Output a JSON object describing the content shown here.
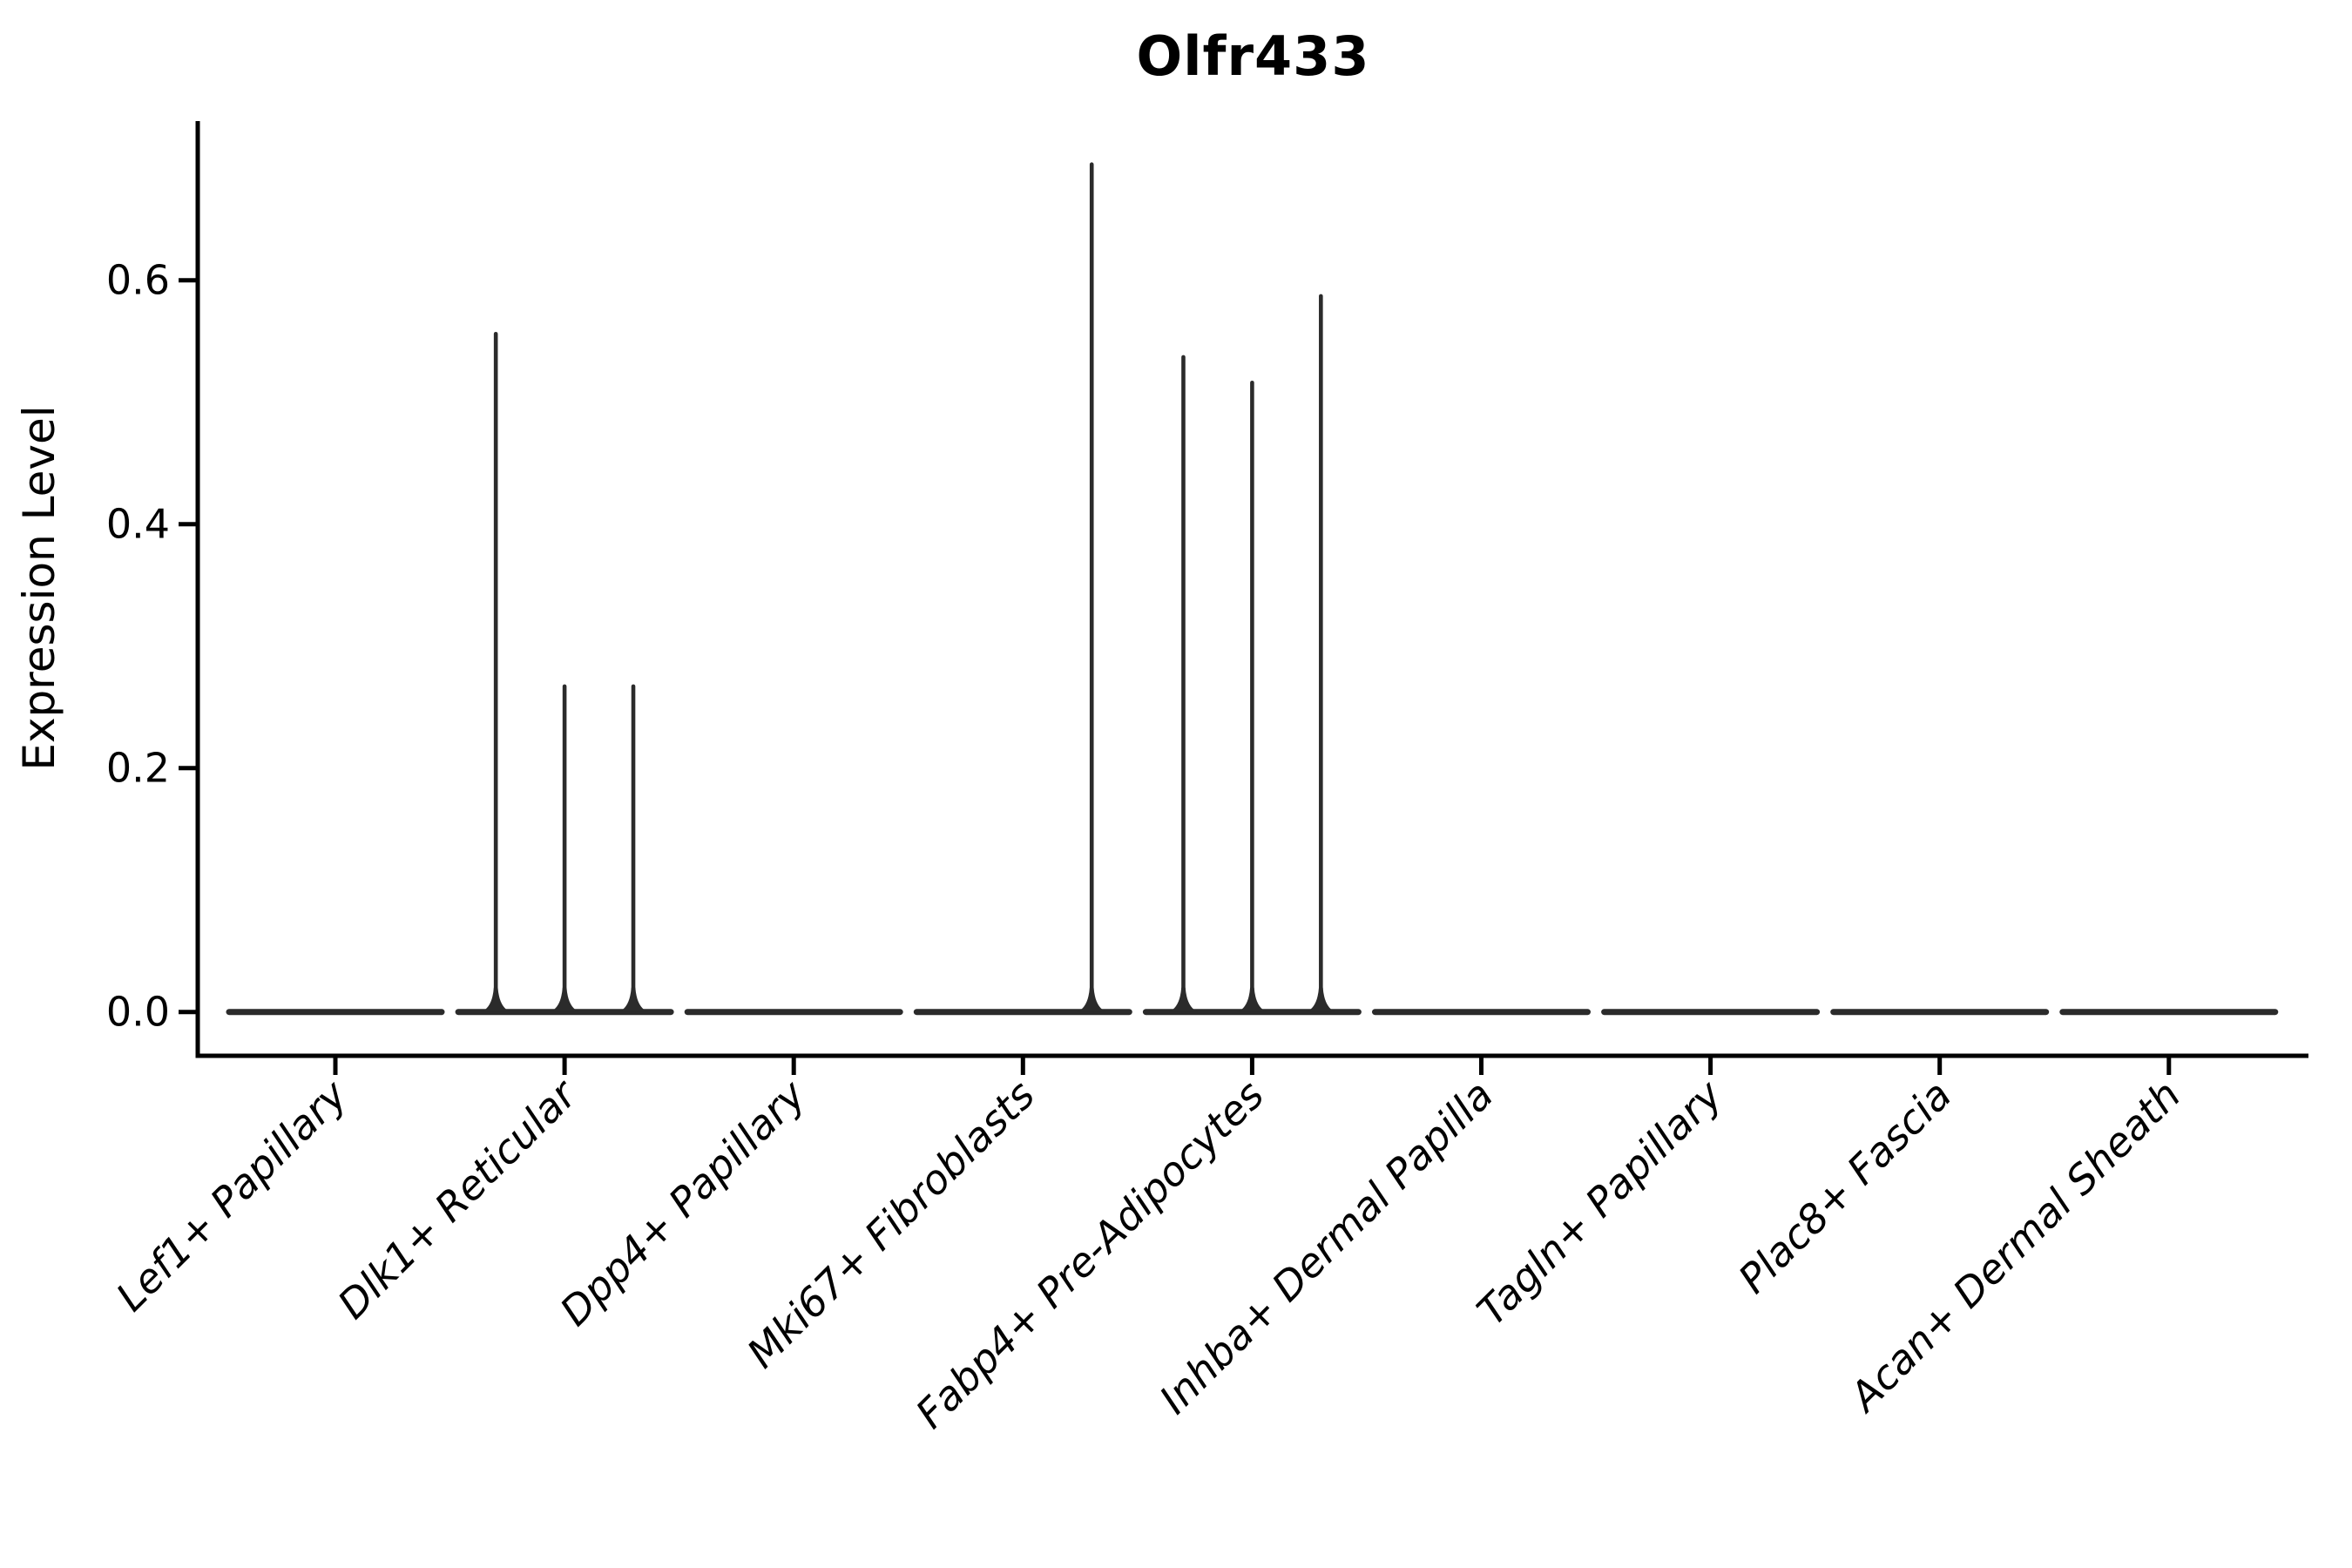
{
  "chart_data": {
    "type": "violin",
    "title": "Olfr433",
    "xlabel": "",
    "ylabel": "Expression Level",
    "yticks": [
      "0.0",
      "0.2",
      "0.4",
      "0.6"
    ],
    "ytick_values": [
      0.0,
      0.2,
      0.4,
      0.6
    ],
    "ylim": [
      -0.036,
      0.731
    ],
    "grid": "off",
    "legend": "none",
    "violin_color": "#2b2b2b",
    "axis_color": "#000000",
    "categories": [
      "Lef1+ Papillary",
      "Dlk1+ Reticular",
      "Dpp4+ Papillary",
      "Mki67+ Fibroblasts",
      "Fabp4+ Pre-Adipocytes",
      "Inhba+ Dermal Papilla",
      "Tagln+ Papillary",
      "Plac8+ Fascia",
      "Acan+ Dermal Sheath"
    ],
    "violins": [
      {
        "category": "Lef1+ Papillary",
        "baseline_value": 0.0,
        "spikes": []
      },
      {
        "category": "Dlk1+ Reticular",
        "baseline_value": 0.0,
        "spikes": [
          {
            "offset": -0.3,
            "value": 0.556
          },
          {
            "offset": 0.0,
            "value": 0.267
          },
          {
            "offset": 0.3,
            "value": 0.267
          }
        ]
      },
      {
        "category": "Dpp4+ Papillary",
        "baseline_value": 0.0,
        "spikes": []
      },
      {
        "category": "Mki67+ Fibroblasts",
        "baseline_value": 0.0,
        "spikes": [
          {
            "offset": 0.3,
            "value": 0.695
          }
        ]
      },
      {
        "category": "Fabp4+ Pre-Adipocytes",
        "baseline_value": 0.0,
        "spikes": [
          {
            "offset": -0.3,
            "value": 0.537
          },
          {
            "offset": 0.0,
            "value": 0.516
          },
          {
            "offset": 0.3,
            "value": 0.587
          }
        ]
      },
      {
        "category": "Inhba+ Dermal Papilla",
        "baseline_value": 0.0,
        "spikes": []
      },
      {
        "category": "Tagln+ Papillary",
        "baseline_value": 0.0,
        "spikes": []
      },
      {
        "category": "Plac8+ Fascia",
        "baseline_value": 0.0,
        "spikes": []
      },
      {
        "category": "Acan+ Dermal Sheath",
        "baseline_value": 0.0,
        "spikes": []
      }
    ]
  }
}
